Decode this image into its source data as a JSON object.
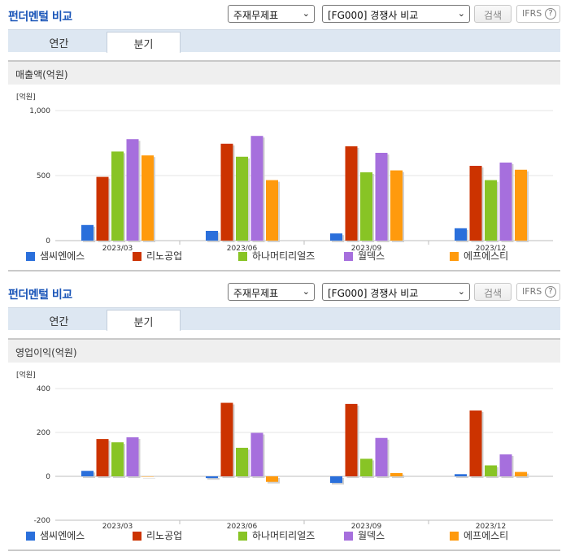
{
  "panels": [
    {
      "title": "펀더멘털 비교",
      "select1": "주재무제표",
      "select2": "[FG000] 경쟁사 비교",
      "search_label": "검색",
      "ifrs_label": "IFRS",
      "help_glyph": "?",
      "tabs": [
        "연간",
        "분기"
      ],
      "active_tab": "분기",
      "chart_header": "매출액(억원)"
    },
    {
      "title": "펀더멘털 비교",
      "select1": "주재무제표",
      "select2": "[FG000] 경쟁사 비교",
      "search_label": "검색",
      "ifrs_label": "IFRS",
      "help_glyph": "?",
      "tabs": [
        "연간",
        "분기"
      ],
      "active_tab": "분기",
      "chart_header": "영업이익(억원)"
    }
  ],
  "colors": {
    "series": [
      "#2a6fdb",
      "#cc3300",
      "#88c425",
      "#a66fdd",
      "#ff9a0d"
    ],
    "title": "#1a55b8",
    "tabbar": "#dde7f2",
    "header_bg": "#efefef"
  },
  "chart_data": [
    {
      "type": "bar",
      "unit_label": "[억원]",
      "categories": [
        "2023/03",
        "2023/06",
        "2023/09",
        "2023/12"
      ],
      "ylim": [
        0,
        1000
      ],
      "yticks": [
        0,
        500,
        1000
      ],
      "ytick_labels": [
        "0",
        "500",
        "1,000"
      ],
      "legend_position": "bottom",
      "grid": true,
      "series": [
        {
          "name": "샘씨엔에스",
          "values": [
            120,
            75,
            55,
            95
          ]
        },
        {
          "name": "리노공업",
          "values": [
            490,
            745,
            725,
            575
          ]
        },
        {
          "name": "하나머티리얼즈",
          "values": [
            685,
            645,
            525,
            465
          ]
        },
        {
          "name": "월덱스",
          "values": [
            780,
            805,
            675,
            600
          ]
        },
        {
          "name": "에프에스티",
          "values": [
            655,
            465,
            540,
            545
          ]
        }
      ]
    },
    {
      "type": "bar",
      "unit_label": "[억원]",
      "categories": [
        "2023/03",
        "2023/06",
        "2023/09",
        "2023/12"
      ],
      "ylim": [
        -200,
        400
      ],
      "yticks": [
        -200,
        0,
        200,
        400
      ],
      "ytick_labels": [
        "-200",
        "0",
        "200",
        "400"
      ],
      "legend_position": "bottom",
      "grid": true,
      "series": [
        {
          "name": "샘씨엔에스",
          "values": [
            25,
            -8,
            -30,
            10
          ]
        },
        {
          "name": "리노공업",
          "values": [
            170,
            335,
            330,
            300
          ]
        },
        {
          "name": "하나머티리얼즈",
          "values": [
            155,
            130,
            80,
            50
          ]
        },
        {
          "name": "월덱스",
          "values": [
            178,
            198,
            175,
            100
          ]
        },
        {
          "name": "에프에스티",
          "values": [
            0,
            -25,
            15,
            20
          ]
        }
      ]
    }
  ]
}
